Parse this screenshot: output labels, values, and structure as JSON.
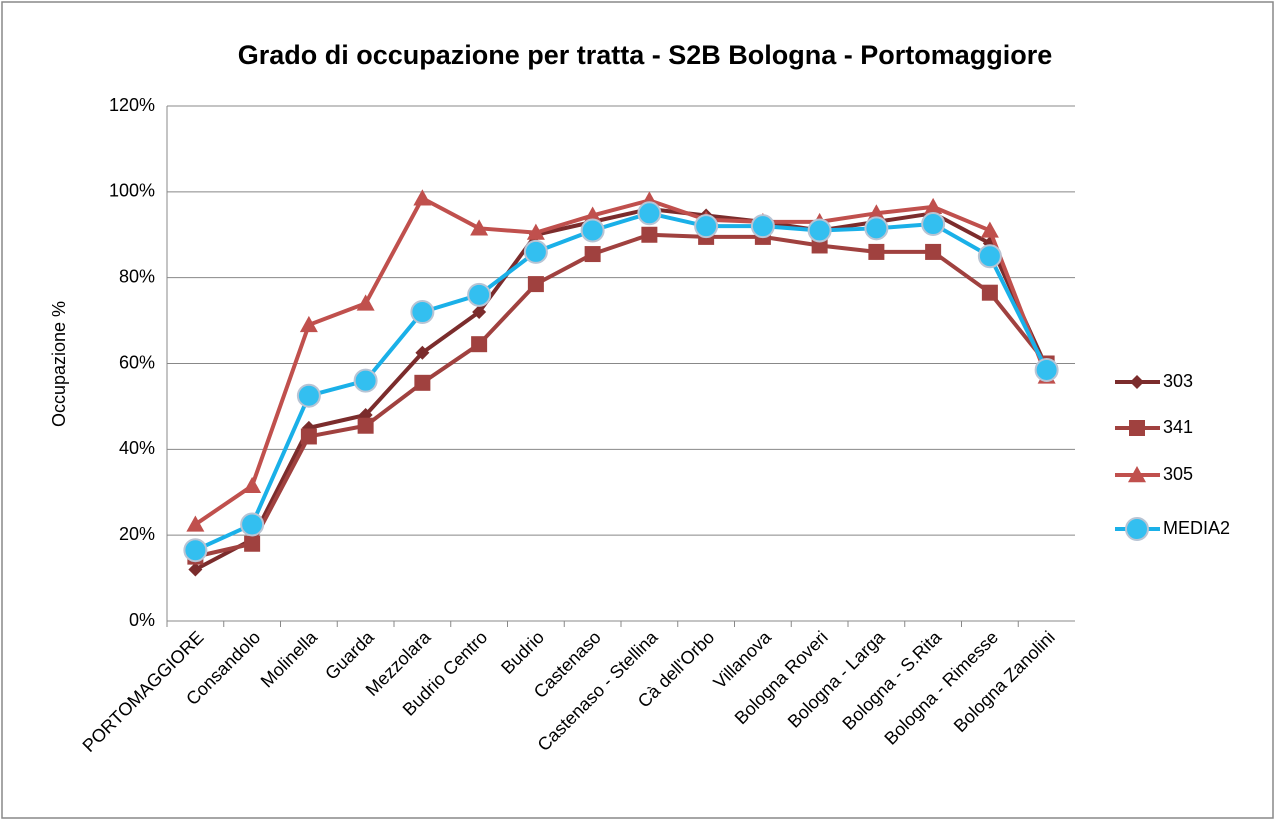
{
  "chart_data": {
    "type": "line",
    "title": "Grado di occupazione per tratta - S2B Bologna - Portomaggiore",
    "y_label": "Occupazione %",
    "categories": [
      "PORTOMAGGIORE",
      "Consandolo",
      "Molinella",
      "Guarda",
      "Mezzolara",
      "Budrio Centro",
      "Budrio",
      "Castenaso",
      "Castenaso - Stellina",
      "Cà dell'Orbo",
      "Villanova",
      "Bologna Roveri",
      "Bologna - Larga",
      "Bologna - S.Rita",
      "Bologna - Rimesse",
      "Bologna Zanolini"
    ],
    "series": [
      {
        "name": "303",
        "color": "#7b2c2c",
        "marker": "diamond",
        "values": [
          12,
          19,
          45,
          48,
          62.5,
          72,
          90,
          93,
          96,
          94.5,
          93,
          91,
          93,
          95,
          88,
          59
        ]
      },
      {
        "name": "341",
        "color": "#a0413f",
        "marker": "square",
        "values": [
          15,
          18,
          43,
          45.5,
          55.5,
          64.5,
          78.5,
          85.5,
          90,
          89.5,
          89.5,
          87.5,
          86,
          86,
          76.5,
          60
        ]
      },
      {
        "name": "305",
        "color": "#c0504d",
        "marker": "triangle",
        "values": [
          22.5,
          31.5,
          69,
          74,
          98.5,
          91.5,
          90.5,
          94.5,
          98,
          93.5,
          93,
          93,
          95,
          96.5,
          91,
          57
        ]
      },
      {
        "name": "MEDIA2",
        "color": "#1ab0e8",
        "marker": "circle",
        "values": [
          16.5,
          22.5,
          52.5,
          56,
          72,
          76,
          86,
          91,
          95,
          92,
          92,
          91,
          91.5,
          92.5,
          85,
          58.5
        ]
      }
    ],
    "ylim": [
      0,
      120
    ],
    "yticks": [
      {
        "value": 0,
        "label": "0%"
      },
      {
        "value": 20,
        "label": "20%"
      },
      {
        "value": 40,
        "label": "40%"
      },
      {
        "value": 60,
        "label": "60%"
      },
      {
        "value": 80,
        "label": "80%"
      },
      {
        "value": 100,
        "label": "100%"
      },
      {
        "value": 120,
        "label": "120%"
      }
    ],
    "grid": true,
    "legend": "right"
  }
}
